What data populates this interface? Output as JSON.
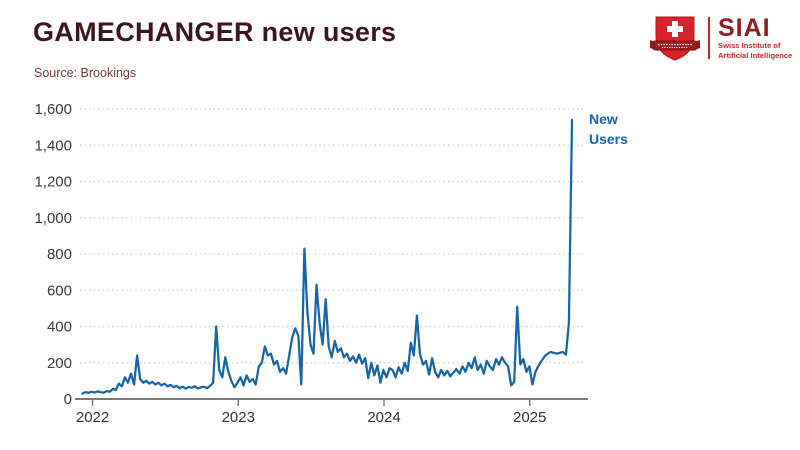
{
  "header": {
    "title": "GAMECHANGER new users",
    "source": "Source: Brookings"
  },
  "logo": {
    "acronym": "SIAI",
    "subtitle_line1": "Swiss Institute of",
    "subtitle_line2": "Artificial Intelligence",
    "shield_color": "#D8232A",
    "ribbon_color": "#9C1B20",
    "acronym_color": "#8E1F23",
    "subtitle_color": "#C9252B"
  },
  "chart_data": {
    "type": "line",
    "title": "GAMECHANGER new users",
    "source": "Source: Brookings",
    "grid": "dotted-horizontal",
    "legend_position": "end-of-line",
    "x_axis": {
      "range": [
        2021.9,
        2025.4
      ],
      "tick_values": [
        2022,
        2023,
        2024,
        2025
      ],
      "tick_labels": [
        "2022",
        "2023",
        "2024",
        "2025"
      ]
    },
    "y_axis": {
      "range": [
        0,
        1600
      ],
      "tick_values": [
        0,
        200,
        400,
        600,
        800,
        1000,
        1200,
        1400,
        1600
      ],
      "tick_labels": [
        "0",
        "200",
        "400",
        "600",
        "800",
        "1,000",
        "1,200",
        "1,400",
        "1,600"
      ]
    },
    "annotation": {
      "text": "New Users",
      "color": "#1264B7"
    },
    "series": [
      {
        "name": "New Users",
        "color": "#1565A9",
        "x_start": 2021.93,
        "x_step_years": 0.02087,
        "values": [
          30,
          38,
          34,
          40,
          36,
          42,
          38,
          35,
          44,
          40,
          55,
          50,
          85,
          70,
          120,
          90,
          140,
          80,
          240,
          110,
          90,
          100,
          85,
          95,
          80,
          90,
          75,
          85,
          70,
          78,
          65,
          72,
          60,
          68,
          58,
          66,
          62,
          70,
          58,
          64,
          68,
          60,
          72,
          90,
          400,
          160,
          120,
          230,
          150,
          100,
          65,
          90,
          120,
          75,
          130,
          95,
          110,
          80,
          180,
          200,
          290,
          240,
          250,
          190,
          210,
          150,
          170,
          140,
          240,
          340,
          390,
          350,
          80,
          830,
          480,
          300,
          250,
          630,
          420,
          300,
          550,
          290,
          230,
          320,
          260,
          280,
          230,
          250,
          210,
          235,
          200,
          245,
          195,
          225,
          115,
          200,
          130,
          185,
          90,
          160,
          120,
          170,
          160,
          120,
          175,
          140,
          200,
          155,
          310,
          240,
          460,
          250,
          190,
          210,
          135,
          225,
          150,
          120,
          160,
          130,
          155,
          125,
          145,
          165,
          140,
          180,
          150,
          200,
          170,
          230,
          160,
          190,
          140,
          210,
          180,
          160,
          220,
          190,
          230,
          200,
          180,
          75,
          95,
          510,
          190,
          220,
          150,
          180,
          80,
          150,
          185,
          210,
          235,
          250,
          260,
          255,
          250,
          255,
          260,
          245,
          420,
          1540
        ]
      }
    ]
  }
}
